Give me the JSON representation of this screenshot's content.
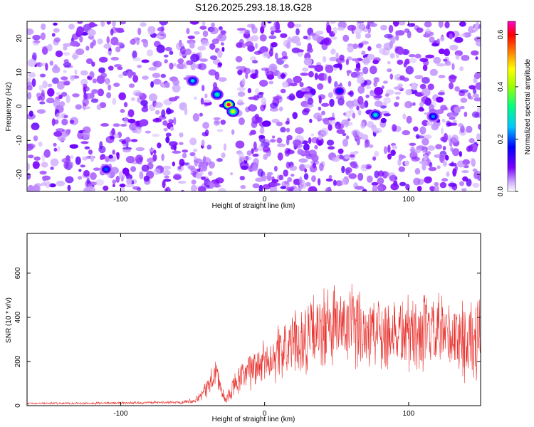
{
  "figure_title": "S126.2025.293.18.18.G28",
  "colors": {
    "snr_line": "#e8312d",
    "axis": "#000000",
    "background": "#ffffff"
  },
  "chart_data": [
    {
      "type": "heatmap",
      "name": "spectrogram",
      "xlabel": "Height of straight line (km)",
      "ylabel": "Frequency (Hz)",
      "xlim": [
        -165,
        150
      ],
      "ylim": [
        -25,
        25
      ],
      "x_ticks": [
        -100,
        0,
        100
      ],
      "y_ticks": [
        -20,
        -10,
        0,
        10,
        20
      ],
      "colorbar": {
        "label": "Normalized spectral amplitude",
        "range": [
          0.0,
          0.65
        ],
        "ticks": [
          0.0,
          0.2,
          0.4,
          0.6
        ],
        "colormap": [
          "#ffffff",
          "#7b00ff",
          "#0000ff",
          "#00c8ff",
          "#00ff80",
          "#a0ff00",
          "#ffff00",
          "#ff8000",
          "#ff0000",
          "#ff00c8"
        ]
      },
      "background_level": 0.08,
      "gap_band_km": [
        -27,
        -18
      ],
      "hotspots": [
        {
          "x": -25,
          "y": 0.5,
          "amp": 0.62
        },
        {
          "x": -22,
          "y": -1.5,
          "amp": 0.45
        },
        {
          "x": -33,
          "y": 3.5,
          "amp": 0.3
        },
        {
          "x": -50,
          "y": 7.5,
          "amp": 0.25
        },
        {
          "x": 77,
          "y": -2.5,
          "amp": 0.28
        },
        {
          "x": 117,
          "y": -3.0,
          "amp": 0.22
        },
        {
          "x": -110,
          "y": -18.5,
          "amp": 0.2
        },
        {
          "x": 52,
          "y": 4.5,
          "amp": 0.18
        }
      ]
    },
    {
      "type": "line",
      "name": "snr",
      "xlabel": "Height of straight line (km)",
      "ylabel": "SNR (10 * v/v)",
      "xlim": [
        -165,
        150
      ],
      "ylim": [
        0,
        780
      ],
      "x_ticks": [
        -100,
        0,
        100
      ],
      "y_ticks": [
        0,
        200,
        400,
        600
      ],
      "series": [
        {
          "name": "SNR",
          "envelope": {
            "x": [
              -165,
              -100,
              -60,
              -50,
              -45,
              -40,
              -36,
              -33,
              -30,
              -27,
              -24,
              -20,
              -15,
              -10,
              0,
              10,
              20,
              30,
              40,
              50,
              60,
              80,
              100,
              120,
              140,
              150
            ],
            "mean": [
              10,
              12,
              15,
              22,
              40,
              80,
              130,
              150,
              60,
              20,
              60,
              100,
              130,
              160,
              200,
              240,
              280,
              310,
              340,
              360,
              350,
              340,
              330,
              320,
              300,
              290
            ],
            "amplitude": [
              4,
              5,
              6,
              10,
              20,
              40,
              60,
              70,
              40,
              15,
              40,
              55,
              65,
              80,
              95,
              110,
              130,
              150,
              170,
              175,
              170,
              165,
              160,
              160,
              165,
              165
            ]
          }
        }
      ]
    }
  ]
}
